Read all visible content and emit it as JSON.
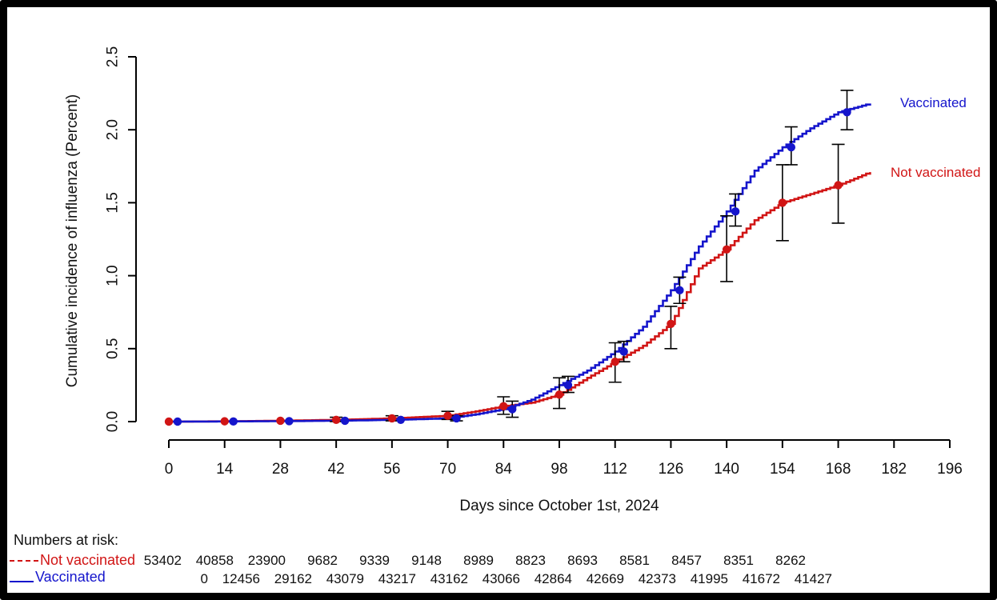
{
  "chart_data": {
    "type": "line",
    "subtype": "step-cumulative-incidence",
    "title": "",
    "xlabel": "Days since October 1st, 2024",
    "ylabel": "Cumulative incidence of influenza (Percent)",
    "xlim": [
      0,
      196
    ],
    "ylim": [
      0,
      2.5
    ],
    "x_ticks": [
      0,
      14,
      28,
      42,
      56,
      70,
      84,
      98,
      112,
      126,
      140,
      154,
      168,
      182,
      196
    ],
    "y_ticks": [
      "0.0",
      "0.5",
      "1.0",
      "1.5",
      "2.0",
      "2.5"
    ],
    "grid": false,
    "legend_position": "right-of-curves",
    "marker_days": [
      0,
      14,
      28,
      42,
      56,
      70,
      84,
      98,
      112,
      126,
      140,
      154,
      168
    ],
    "series": [
      {
        "name": "Not vaccinated",
        "color": "#d11515",
        "marker_x_offset_days": 0,
        "step_anchors": [
          [
            0,
            0
          ],
          [
            14,
            0.002
          ],
          [
            28,
            0.006
          ],
          [
            42,
            0.012
          ],
          [
            56,
            0.022
          ],
          [
            70,
            0.04
          ],
          [
            77,
            0.07
          ],
          [
            84,
            0.105
          ],
          [
            91,
            0.13
          ],
          [
            98,
            0.185
          ],
          [
            105,
            0.3
          ],
          [
            112,
            0.41
          ],
          [
            119,
            0.52
          ],
          [
            126,
            0.67
          ],
          [
            133,
            1.05
          ],
          [
            140,
            1.18
          ],
          [
            147,
            1.38
          ],
          [
            154,
            1.5
          ],
          [
            161,
            1.56
          ],
          [
            168,
            1.62
          ],
          [
            176,
            1.71
          ]
        ],
        "marker_values": [
          0,
          0.002,
          0.006,
          0.012,
          0.022,
          0.04,
          0.105,
          0.185,
          0.41,
          0.67,
          1.18,
          1.5,
          1.62
        ],
        "ci_low": [
          null,
          null,
          null,
          0.0,
          0.005,
          0.015,
          0.05,
          0.09,
          0.27,
          0.5,
          0.96,
          1.24,
          1.36
        ],
        "ci_high": [
          null,
          null,
          null,
          0.03,
          0.04,
          0.07,
          0.17,
          0.3,
          0.54,
          0.79,
          1.41,
          1.76,
          1.9
        ]
      },
      {
        "name": "Vaccinated",
        "color": "#1515cc",
        "marker_x_offset_days": 2.2,
        "step_anchors": [
          [
            0,
            0
          ],
          [
            14,
            0.001
          ],
          [
            28,
            0.003
          ],
          [
            42,
            0.006
          ],
          [
            56,
            0.012
          ],
          [
            70,
            0.022
          ],
          [
            77,
            0.05
          ],
          [
            84,
            0.085
          ],
          [
            91,
            0.15
          ],
          [
            98,
            0.25
          ],
          [
            105,
            0.35
          ],
          [
            112,
            0.48
          ],
          [
            119,
            0.65
          ],
          [
            126,
            0.9
          ],
          [
            133,
            1.2
          ],
          [
            140,
            1.44
          ],
          [
            147,
            1.72
          ],
          [
            154,
            1.88
          ],
          [
            161,
            2.01
          ],
          [
            168,
            2.12
          ],
          [
            176,
            2.18
          ]
        ],
        "marker_values": [
          0,
          0.001,
          0.003,
          0.006,
          0.012,
          0.022,
          0.085,
          0.25,
          0.48,
          0.9,
          1.44,
          1.88,
          2.12
        ],
        "ci_low": [
          null,
          null,
          null,
          null,
          null,
          0.005,
          0.03,
          0.2,
          0.41,
          0.81,
          1.34,
          1.76,
          2.0
        ],
        "ci_high": [
          null,
          null,
          null,
          null,
          null,
          0.04,
          0.14,
          0.31,
          0.55,
          0.99,
          1.56,
          2.02,
          2.27
        ]
      }
    ],
    "curve_end_labels": {
      "vaccinated": "Vaccinated",
      "not_vaccinated": "Not vaccinated"
    },
    "numbers_at_risk": {
      "title": "Numbers at risk:",
      "rows": [
        {
          "label": "Not vaccinated",
          "color": "#d11515",
          "line_style": "dashed",
          "values": [
            53402,
            40858,
            23900,
            9682,
            9339,
            9148,
            8989,
            8823,
            8693,
            8581,
            8457,
            8351,
            8262
          ]
        },
        {
          "label": "Vaccinated",
          "color": "#1515cc",
          "line_style": "solid",
          "values": [
            0,
            12456,
            29162,
            43079,
            43217,
            43162,
            43066,
            42864,
            42669,
            42373,
            41995,
            41672,
            41427
          ]
        }
      ]
    },
    "colors": {
      "error_bar": "#000000",
      "axis": "#000000",
      "background": "#ffffff",
      "frame": "#000000"
    }
  }
}
